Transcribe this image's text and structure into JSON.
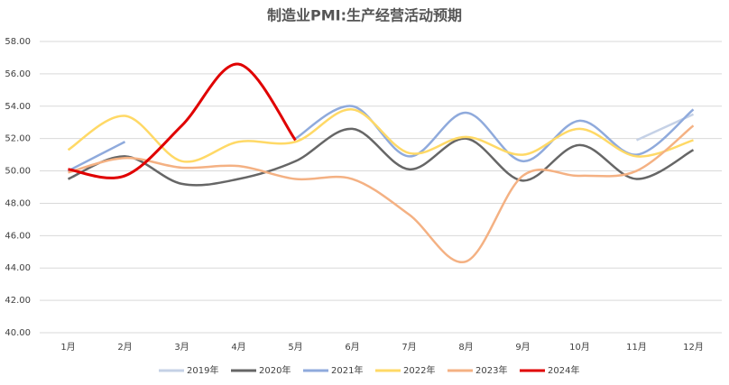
{
  "chart_data": {
    "type": "line",
    "title": "制造业PMI:生产经营活动预期",
    "categories": [
      "1月",
      "2月",
      "3月",
      "4月",
      "5月",
      "6月",
      "7月",
      "8月",
      "9月",
      "10月",
      "11月",
      "12月"
    ],
    "ylim": [
      40,
      58
    ],
    "yticks": [
      {
        "value": 40,
        "label": "40.00"
      },
      {
        "value": 42,
        "label": "42.00"
      },
      {
        "value": 44,
        "label": "44.00"
      },
      {
        "value": 46,
        "label": "46.00"
      },
      {
        "value": 48,
        "label": "48.00"
      },
      {
        "value": 50,
        "label": "50.00"
      },
      {
        "value": 52,
        "label": "52.00"
      },
      {
        "value": 54,
        "label": "54.00"
      },
      {
        "value": 56,
        "label": "56.00"
      },
      {
        "value": 58,
        "label": "58.00"
      }
    ],
    "grid": true,
    "smooth": true,
    "legend": "bottom",
    "series": [
      {
        "name": "2019年",
        "color": "#c5d1e6",
        "values": [
          null,
          null,
          null,
          null,
          null,
          null,
          null,
          null,
          null,
          null,
          51.9,
          53.5
        ]
      },
      {
        "name": "2020年",
        "color": "#666666",
        "values": [
          49.5,
          50.9,
          49.2,
          49.5,
          50.6,
          52.6,
          50.1,
          52.0,
          49.4,
          51.6,
          49.5,
          51.3
        ]
      },
      {
        "name": "2021年",
        "color": "#8faadc",
        "values": [
          50.0,
          51.8,
          null,
          null,
          52.0,
          54.0,
          50.9,
          53.6,
          50.6,
          53.1,
          51.0,
          53.8
        ]
      },
      {
        "name": "2022年",
        "color": "#ffd966",
        "values": [
          51.3,
          53.4,
          50.6,
          51.8,
          51.8,
          53.8,
          51.1,
          52.1,
          51.0,
          52.6,
          50.9,
          51.9
        ]
      },
      {
        "name": "2023年",
        "color": "#f4b183",
        "values": [
          49.9,
          50.8,
          50.2,
          50.3,
          49.5,
          49.5,
          47.3,
          44.4,
          49.7,
          49.7,
          50.0,
          52.8
        ]
      },
      {
        "name": "2024年",
        "color": "#e00000",
        "values": [
          50.1,
          49.7,
          52.8,
          56.6,
          51.9,
          null,
          null,
          null,
          null,
          null,
          null,
          null
        ]
      }
    ]
  }
}
